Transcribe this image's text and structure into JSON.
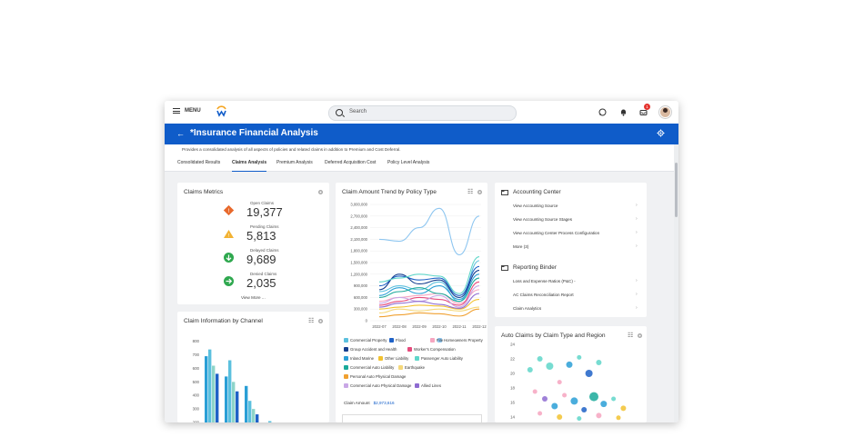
{
  "topbar": {
    "menu_label": "MENU",
    "search_placeholder": "Search",
    "inbox_badge": "1"
  },
  "header": {
    "title": "*Insurance Financial Analysis",
    "description": "Provides a consolidated analysis of all aspects of policies and related claims in addition to Premium and Cost Deferral.",
    "bg_color": "#0f5cc9"
  },
  "tabs": [
    {
      "label": "Consolidated Results",
      "active": false
    },
    {
      "label": "Claims Analysis",
      "active": true
    },
    {
      "label": "Premium Analysis",
      "active": false
    },
    {
      "label": "Deferred Acquisition Cost",
      "active": false
    },
    {
      "label": "Policy Level Analysis",
      "active": false
    }
  ],
  "claims_metrics": {
    "title": "Claims Metrics",
    "items": [
      {
        "label": "Open Claims",
        "value": "19,377",
        "icon": "diamond-alert-icon",
        "color": "#e8692c"
      },
      {
        "label": "Pending Claims",
        "value": "5,813",
        "icon": "warning-triangle-icon",
        "color": "#f2b233"
      },
      {
        "label": "Delayed Claims",
        "value": "9,689",
        "icon": "arrow-down-circle-icon",
        "color": "#2fa84f"
      },
      {
        "label": "Denied Claims",
        "value": "2,035",
        "icon": "arrow-right-circle-icon",
        "color": "#2fa84f"
      }
    ],
    "view_more": "View More ..."
  },
  "claim_amount_trend": {
    "title": "Claim Amount Trend by Policy Type",
    "footer_label": "Claim Amount",
    "footer_value": "$2,973,616",
    "legend": [
      {
        "label": "Commercial Property",
        "color": "#5bc0de"
      },
      {
        "label": "Flood",
        "color": "#1f62c7"
      },
      {
        "label": "Homeowners Property",
        "color": "#8ec6f0"
      },
      {
        "label": "Group Accident and Health",
        "color": "#163f8f"
      },
      {
        "label": "Fire",
        "color": "#f6a5c0"
      },
      {
        "label": "Worker's Compensation",
        "color": "#e64b7c"
      },
      {
        "label": "Inland Marine",
        "color": "#2a9fd6"
      },
      {
        "label": "Other Liability",
        "color": "#f2c230"
      },
      {
        "label": "Passenger Auto Liability",
        "color": "#5fd6c9"
      },
      {
        "label": "Commercial Auto Liability",
        "color": "#1aa99a"
      },
      {
        "label": "Earthquake",
        "color": "#f5d87a"
      },
      {
        "label": "Personal Auto Physical Damage",
        "color": "#f0a030"
      },
      {
        "label": "Commercial Auto Physical Damage",
        "color": "#c9a7e6"
      },
      {
        "label": "Allied Lines",
        "color": "#8e6bd1"
      }
    ]
  },
  "claim_info_channel": {
    "title": "Claim Information by Channel"
  },
  "accounting_center": {
    "title": "Accounting Center",
    "links": [
      "View Accounting Source",
      "View Accounting Source Stages",
      "View Accounting Center Process Configuration",
      "More (3)"
    ]
  },
  "reporting_binder": {
    "title": "Reporting Binder",
    "links": [
      "Loss and Expense Ratios (P&C) -",
      "AC Claims Reconciliation Report",
      "Claim Analytics"
    ]
  },
  "auto_claims": {
    "title": "Auto Claims by Claim Type and Region"
  },
  "chart_data": [
    {
      "type": "line",
      "title": "Claim Amount Trend by Policy Type",
      "x": [
        "2022-07",
        "2022-08",
        "2022-09",
        "2022-10",
        "2022-11",
        "2022-12"
      ],
      "ylim": [
        0,
        3000000
      ],
      "yticks": [
        "0",
        "300,000",
        "600,000",
        "900,000",
        "1,200,000",
        "1,500,000",
        "1,800,000",
        "2,100,000",
        "2,400,000",
        "2,700,000",
        "3,000,000"
      ],
      "series": [
        {
          "name": "Commercial Property",
          "values": [
            750000,
            900000,
            800000,
            1000000,
            500000,
            1550000
          ]
        },
        {
          "name": "Flood",
          "values": [
            900000,
            1150000,
            1050000,
            1100000,
            650000,
            1400000
          ]
        },
        {
          "name": "Homeowners Property",
          "values": [
            2100000,
            2050000,
            2400000,
            2900000,
            1700000,
            2700000
          ]
        },
        {
          "name": "Group Accident and Health",
          "values": [
            800000,
            1200000,
            950000,
            1050000,
            600000,
            1300000
          ]
        },
        {
          "name": "Fire",
          "values": [
            500000,
            600000,
            650000,
            700000,
            450000,
            800000
          ]
        },
        {
          "name": "Worker's Compensation",
          "values": [
            400000,
            500000,
            600000,
            550000,
            400000,
            1000000
          ]
        },
        {
          "name": "Inland Marine",
          "values": [
            650000,
            850000,
            700000,
            900000,
            550000,
            1200000
          ]
        },
        {
          "name": "Other Liability",
          "values": [
            300000,
            350000,
            400000,
            380000,
            300000,
            550000
          ]
        },
        {
          "name": "Passenger Auto Liability",
          "values": [
            1000000,
            1100000,
            1200000,
            1150000,
            700000,
            1650000
          ]
        },
        {
          "name": "Commercial Auto Liability",
          "values": [
            600000,
            750000,
            850000,
            700000,
            500000,
            1100000
          ]
        },
        {
          "name": "Earthquake",
          "values": [
            200000,
            300000,
            250000,
            300000,
            250000,
            350000
          ]
        },
        {
          "name": "Personal Auto Physical Damage",
          "values": [
            100000,
            150000,
            200000,
            180000,
            120000,
            300000
          ]
        },
        {
          "name": "Commercial Auto Physical Damage",
          "values": [
            450000,
            600000,
            500000,
            650000,
            350000,
            900000
          ]
        },
        {
          "name": "Allied Lines",
          "values": [
            350000,
            450000,
            500000,
            420000,
            320000,
            700000
          ]
        }
      ]
    },
    {
      "type": "bar",
      "title": "Claim Information by Channel",
      "ylim": [
        0,
        800
      ],
      "yticks": [
        "800",
        "700",
        "600",
        "500",
        "400",
        "300",
        "200"
      ],
      "series": [
        {
          "values": [
            690,
            540,
            470,
            170,
            150,
            120
          ]
        },
        {
          "values": [
            740,
            660,
            360,
            210,
            140,
            100
          ]
        },
        {
          "values": [
            620,
            500,
            300,
            150,
            130,
            90
          ]
        },
        {
          "values": [
            560,
            430,
            260,
            140,
            110,
            80
          ]
        }
      ]
    },
    {
      "type": "scatter",
      "title": "Auto Claims by Claim Type and Region",
      "ylim": [
        14,
        24
      ],
      "yticks": [
        "24",
        "22",
        "20",
        "18",
        "16",
        "14"
      ],
      "points": [
        {
          "x": 1,
          "y": 20.5,
          "r": 3,
          "color": "#5fd6c9"
        },
        {
          "x": 1.4,
          "y": 22,
          "r": 3,
          "color": "#5fd6c9"
        },
        {
          "x": 1.8,
          "y": 21,
          "r": 4,
          "color": "#5fd6c9"
        },
        {
          "x": 2.2,
          "y": 18.8,
          "r": 2.5,
          "color": "#f6a5c0"
        },
        {
          "x": 2.6,
          "y": 21.2,
          "r": 3.5,
          "color": "#2a9fd6"
        },
        {
          "x": 3,
          "y": 22.2,
          "r": 2.5,
          "color": "#5fd6c9"
        },
        {
          "x": 3.4,
          "y": 20,
          "r": 4,
          "color": "#1f62c7"
        },
        {
          "x": 3.8,
          "y": 21.5,
          "r": 3,
          "color": "#5fd6c9"
        },
        {
          "x": 1.2,
          "y": 17.5,
          "r": 2.5,
          "color": "#f6a5c0"
        },
        {
          "x": 1.6,
          "y": 16.5,
          "r": 3,
          "color": "#8e6bd1"
        },
        {
          "x": 2,
          "y": 15.5,
          "r": 3.5,
          "color": "#2a9fd6"
        },
        {
          "x": 2.4,
          "y": 17,
          "r": 2.5,
          "color": "#f6a5c0"
        },
        {
          "x": 2.8,
          "y": 16.2,
          "r": 4,
          "color": "#2a9fd6"
        },
        {
          "x": 3.2,
          "y": 15,
          "r": 3,
          "color": "#1f62c7"
        },
        {
          "x": 3.6,
          "y": 16.8,
          "r": 5,
          "color": "#1aa99a"
        },
        {
          "x": 4,
          "y": 15.8,
          "r": 3.5,
          "color": "#2a9fd6"
        },
        {
          "x": 4.4,
          "y": 16.5,
          "r": 2.5,
          "color": "#5fd6c9"
        },
        {
          "x": 4.8,
          "y": 15.2,
          "r": 3,
          "color": "#f2c230"
        },
        {
          "x": 1.4,
          "y": 14.5,
          "r": 2.5,
          "color": "#f6a5c0"
        },
        {
          "x": 2.2,
          "y": 14,
          "r": 3,
          "color": "#f2c230"
        },
        {
          "x": 3,
          "y": 13.8,
          "r": 2.5,
          "color": "#5fd6c9"
        },
        {
          "x": 3.8,
          "y": 14.2,
          "r": 3,
          "color": "#f6a5c0"
        },
        {
          "x": 4.6,
          "y": 13.9,
          "r": 2.5,
          "color": "#f2c230"
        }
      ]
    }
  ]
}
